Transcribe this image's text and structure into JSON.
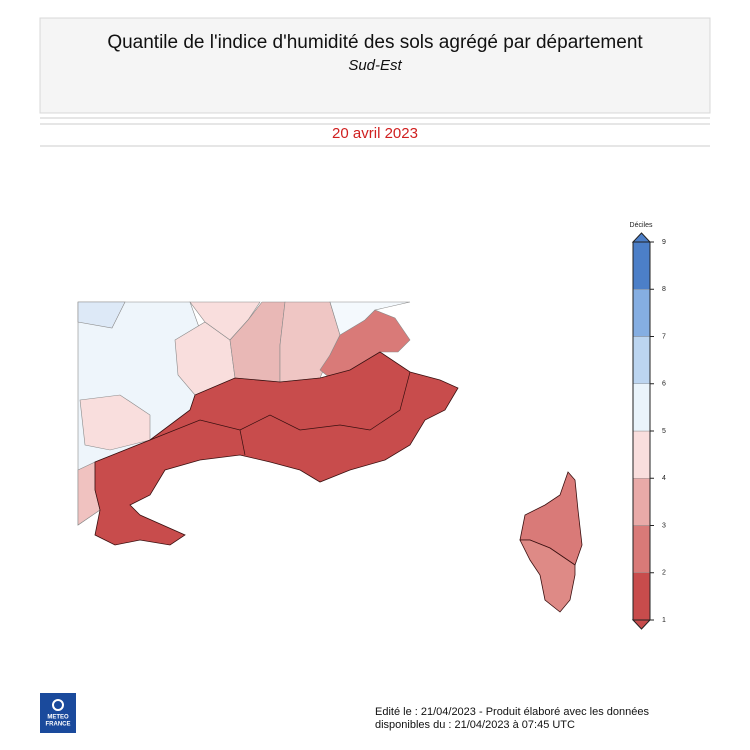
{
  "header": {
    "title": "Quantile de l'indice d'humidité des sols agrégé par département",
    "subtitle": "Sud-Est"
  },
  "date": "20 avril 2023",
  "legend": {
    "title": "Déciles",
    "ticks": [
      1,
      2,
      3,
      4,
      5,
      6,
      7,
      8,
      9
    ],
    "colors": [
      "#c84c4c",
      "#d97a78",
      "#e9aaa8",
      "#f9dedd",
      "#eaf4fb",
      "#bcd5f0",
      "#85aee2",
      "#4c7fc8"
    ]
  },
  "footer": {
    "lines": [
      "Edité le : 21/04/2023 - Produit élaboré avec les données",
      "disponibles du : 21/04/2023 à 07:45 UTC"
    ]
  },
  "logo": {
    "lines": [
      "METEO",
      "FRANCE"
    ]
  }
}
